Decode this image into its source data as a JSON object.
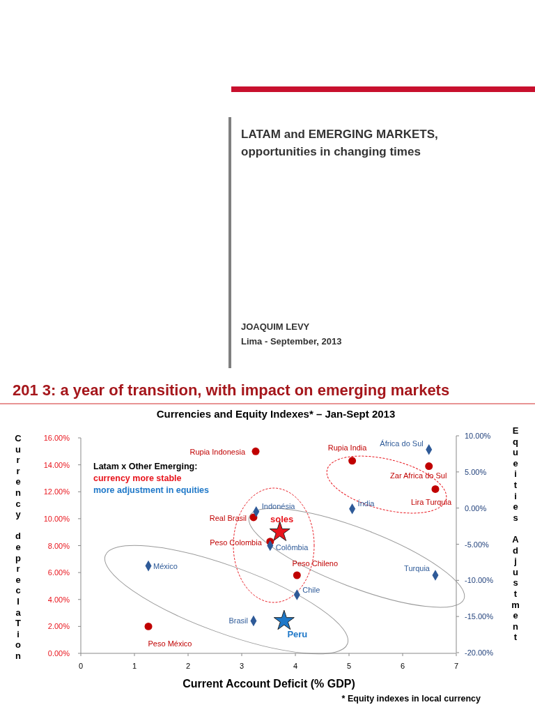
{
  "chart_data": [
    {
      "type": "other",
      "title": "LATAM and EMERGING MARKETS, opportunities in changing times",
      "annotations": [
        "JOAQUIM LEVY",
        "Lima - September, 2013"
      ]
    },
    {
      "type": "scatter",
      "title": "201 3: a year of transition, with impact on emerging markets",
      "subtitle": "Currencies and Equity Indexes* –  Jan-Sept 2013",
      "xlabel": "Current Account Deficit (% GDP)",
      "ylabel": "Currency deprecIaTion",
      "y2label": "Equeities Adjustment",
      "xlim": [
        0,
        7
      ],
      "xticks": [
        0,
        1,
        2,
        3,
        4,
        5,
        6,
        7
      ],
      "ylim": [
        0,
        16
      ],
      "yticks": [
        {
          "value": 0,
          "label": "0.00%"
        },
        {
          "value": 2,
          "label": "2.00%"
        },
        {
          "value": 4,
          "label": "4.00%"
        },
        {
          "value": 6,
          "label": "6.00%"
        },
        {
          "value": 8,
          "label": "8.00%"
        },
        {
          "value": 10,
          "label": "10.00%"
        },
        {
          "value": 12,
          "label": "12.00%"
        },
        {
          "value": 14,
          "label": "14.00%"
        },
        {
          "value": 16,
          "label": "16.00%"
        }
      ],
      "y2lim": [
        -20,
        10
      ],
      "y2ticks": [
        {
          "value": -20,
          "label": "-20.00%"
        },
        {
          "value": -15,
          "label": "-15.00%"
        },
        {
          "value": -10,
          "label": "-10.00%"
        },
        {
          "value": -5,
          "label": "-5.00%"
        },
        {
          "value": 0,
          "label": "0.00%"
        },
        {
          "value": 5,
          "label": "5.00%"
        },
        {
          "value": 10,
          "label": "10.00%"
        }
      ],
      "series": [
        {
          "name": "Rupia Indonesia",
          "color": "#c00000",
          "marker": "circle",
          "x": [
            3.26
          ],
          "values": [
            15.0
          ]
        },
        {
          "name": "Rupia India",
          "color": "#c00000",
          "marker": "circle",
          "x": [
            5.06
          ],
          "values": [
            14.3
          ]
        },
        {
          "name": "Zar Africa do Sul",
          "color": "#c00000",
          "marker": "circle",
          "x": [
            6.49
          ],
          "values": [
            13.9
          ]
        },
        {
          "name": "Lira Turquia",
          "color": "#c00000",
          "marker": "circle",
          "x": [
            6.61
          ],
          "values": [
            12.2
          ]
        },
        {
          "name": "Real Brasil",
          "color": "#c00000",
          "marker": "circle",
          "x": [
            3.22
          ],
          "values": [
            10.1
          ]
        },
        {
          "name": "soles",
          "color": "#e8141c",
          "marker": "star",
          "x": [
            3.71
          ],
          "values": [
            9.0
          ]
        },
        {
          "name": "Peso Colombia",
          "color": "#c00000",
          "marker": "circle",
          "x": [
            3.53
          ],
          "values": [
            8.3
          ]
        },
        {
          "name": "Peso Chileno",
          "color": "#c00000",
          "marker": "circle",
          "x": [
            4.03
          ],
          "values": [
            5.8
          ]
        },
        {
          "name": "Peso México",
          "color": "#c00000",
          "marker": "circle",
          "x": [
            1.26
          ],
          "values": [
            2.0
          ]
        },
        {
          "name": "África do Sul",
          "color": "#2e5a98",
          "marker": "diamond",
          "axis": "y2",
          "x": [
            6.49
          ],
          "values": [
            8.1
          ]
        },
        {
          "name": "Índia",
          "color": "#2e5a98",
          "marker": "diamond",
          "axis": "y2",
          "x": [
            5.06
          ],
          "values": [
            -0.1
          ]
        },
        {
          "name": "Indonésia",
          "color": "#2e5a98",
          "marker": "diamond",
          "axis": "y2",
          "x": [
            3.27
          ],
          "values": [
            -0.5
          ]
        },
        {
          "name": "Colômbia",
          "color": "#2e5a98",
          "marker": "diamond",
          "axis": "y2",
          "x": [
            3.53
          ],
          "values": [
            -5.2
          ]
        },
        {
          "name": "Turquia",
          "color": "#2e5a98",
          "marker": "diamond",
          "axis": "y2",
          "x": [
            6.61
          ],
          "values": [
            -9.3
          ]
        },
        {
          "name": "México",
          "color": "#2e5a98",
          "marker": "diamond",
          "axis": "y2",
          "x": [
            1.26
          ],
          "values": [
            -8.0
          ]
        },
        {
          "name": "Chile",
          "color": "#2e5a98",
          "marker": "diamond",
          "axis": "y2",
          "x": [
            4.03
          ],
          "values": [
            -12.0
          ]
        },
        {
          "name": "Brasil",
          "color": "#2e5a98",
          "marker": "diamond",
          "axis": "y2",
          "x": [
            3.22
          ],
          "values": [
            -15.6
          ]
        },
        {
          "name": "Peru",
          "color": "#1f78c8",
          "marker": "star",
          "axis": "y2",
          "x": [
            3.79
          ],
          "values": [
            -15.6
          ]
        }
      ],
      "annotations": [
        "Latam x Other Emerging:",
        "currency more stable",
        "more adjustment in equities",
        "* Equity indexes in local currency"
      ]
    }
  ]
}
